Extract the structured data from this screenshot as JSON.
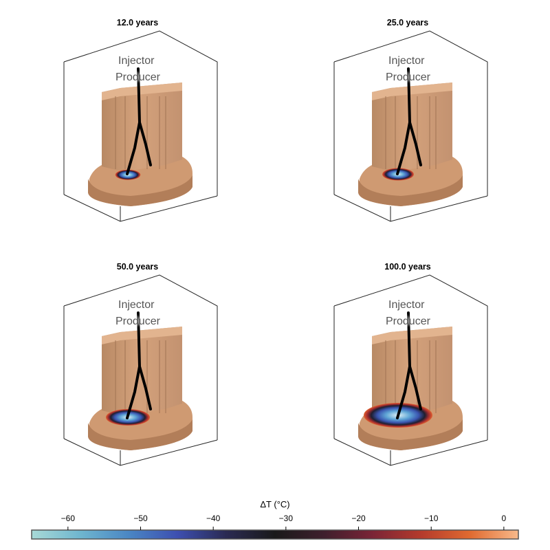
{
  "panels": [
    {
      "title": "12.0 years",
      "plume": 0.12
    },
    {
      "title": "25.0 years",
      "plume": 0.25
    },
    {
      "title": "50.0 years",
      "plume": 0.5
    },
    {
      "title": "100.0 years",
      "plume": 1.0
    }
  ],
  "labels": {
    "injector": "Injector",
    "producer": "Producer"
  },
  "colorbar": {
    "title": "ΔT (°C)",
    "range": [
      -65,
      2
    ],
    "ticks": [
      {
        "value": -60,
        "label": "−60"
      },
      {
        "value": -50,
        "label": "−50"
      },
      {
        "value": -40,
        "label": "−40"
      },
      {
        "value": -30,
        "label": "−30"
      },
      {
        "value": -20,
        "label": "−20"
      },
      {
        "value": -10,
        "label": "−10"
      },
      {
        "value": 0,
        "label": "0"
      }
    ],
    "colors": [
      "#a8d9d6",
      "#6fb6cf",
      "#4a86c4",
      "#3d4fb0",
      "#2a2a52",
      "#1a1a1a",
      "#3e1f2d",
      "#7a2436",
      "#b43a2c",
      "#e06a30",
      "#f8b98a"
    ]
  },
  "block_color": "#c99a74"
}
